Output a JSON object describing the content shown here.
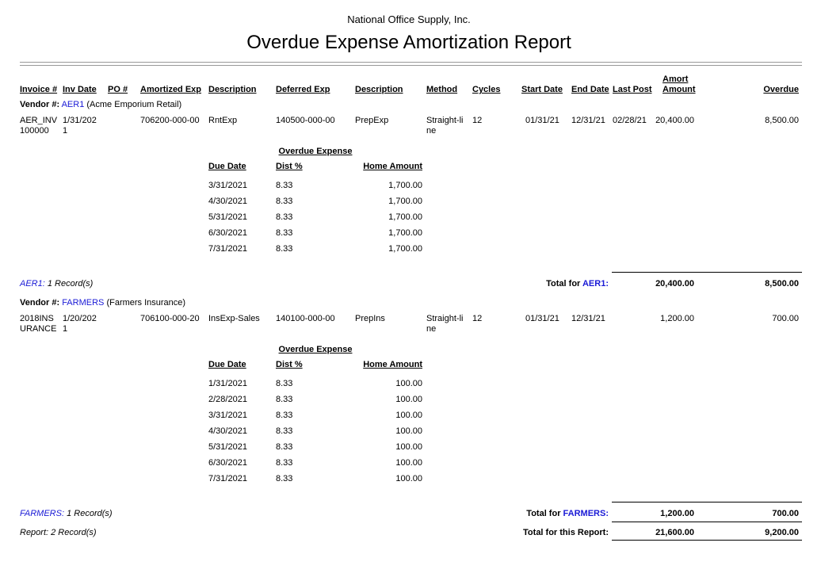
{
  "header": {
    "company": "National Office Supply, Inc.",
    "title": "Overdue Expense Amortization Report"
  },
  "columns": {
    "invoice": "Invoice #",
    "inv_date": "Inv Date",
    "po": "PO #",
    "amortized_exp": "Amortized Exp",
    "description": "Description",
    "deferred_exp": "Deferred Exp",
    "deferred_description": "Description",
    "method": "Method",
    "cycles": "Cycles",
    "start_date": "Start Date",
    "end_date": "End Date",
    "last_post": "Last Post",
    "amort_amount": "Amort Amount",
    "overdue": "Overdue"
  },
  "vendors": [
    {
      "label": "Vendor #:",
      "code": "AER1",
      "name": "(Acme Emporium Retail)",
      "invoice": {
        "invoice": "AER_INV100000",
        "inv_date": "1/31/2021",
        "amortized_exp": "706200-000-00",
        "description": "RntExp",
        "deferred_exp": "140500-000-00",
        "deferred_description": "PrepExp",
        "method": "Straight-line",
        "cycles": "12",
        "start_date": "01/31/21",
        "end_date": "12/31/21",
        "last_post": "02/28/21",
        "amort_amount": "20,400.00",
        "overdue": "8,500.00"
      },
      "schedule": {
        "title": "Overdue Expense",
        "headers": [
          "Due Date",
          "Dist %",
          "Home Amount"
        ],
        "rows": [
          [
            "3/31/2021",
            "8.33",
            "1,700.00"
          ],
          [
            "4/30/2021",
            "8.33",
            "1,700.00"
          ],
          [
            "5/31/2021",
            "8.33",
            "1,700.00"
          ],
          [
            "6/30/2021",
            "8.33",
            "1,700.00"
          ],
          [
            "7/31/2021",
            "8.33",
            "1,700.00"
          ]
        ]
      },
      "footer": {
        "records_code": "AER1:",
        "records": "1 Record(s)",
        "total_label": "Total for",
        "total_code": "AER1:",
        "amort": "20,400.00",
        "overdue": "8,500.00"
      }
    },
    {
      "label": "Vendor #:",
      "code": "FARMERS",
      "name": "(Farmers Insurance)",
      "invoice": {
        "invoice": "2018INSURANCE",
        "inv_date": "1/20/2021",
        "amortized_exp": "706100-000-20",
        "description": "InsExp-Sales",
        "deferred_exp": "140100-000-00",
        "deferred_description": "PrepIns",
        "method": "Straight-line",
        "cycles": "12",
        "start_date": "01/31/21",
        "end_date": "12/31/21",
        "amort_amount": "1,200.00",
        "overdue": "700.00"
      },
      "schedule": {
        "title": "Overdue Expense",
        "headers": [
          "Due Date",
          "Dist %",
          "Home Amount"
        ],
        "rows": [
          [
            "1/31/2021",
            "8.33",
            "100.00"
          ],
          [
            "2/28/2021",
            "8.33",
            "100.00"
          ],
          [
            "3/31/2021",
            "8.33",
            "100.00"
          ],
          [
            "4/30/2021",
            "8.33",
            "100.00"
          ],
          [
            "5/31/2021",
            "8.33",
            "100.00"
          ],
          [
            "6/30/2021",
            "8.33",
            "100.00"
          ],
          [
            "7/31/2021",
            "8.33",
            "100.00"
          ]
        ]
      },
      "footer": {
        "records_code": "FARMERS:",
        "records": "1 Record(s)",
        "total_label": "Total for",
        "total_code": "FARMERS:",
        "amort": "1,200.00",
        "overdue": "700.00"
      }
    }
  ],
  "report_total": {
    "records": "Report: 2 Record(s)",
    "label": "Total for this Report:",
    "amort": "21,600.00",
    "overdue": "9,200.00"
  }
}
